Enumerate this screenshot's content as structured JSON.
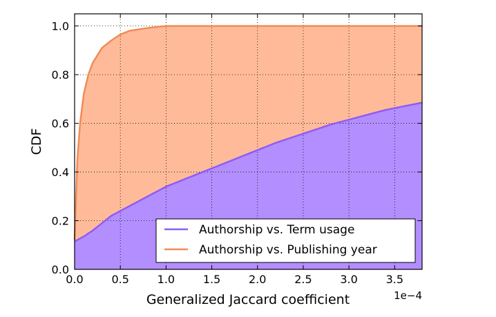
{
  "chart_data": {
    "type": "area",
    "xlabel": "Generalized Jaccard coefficient",
    "ylabel": "CDF",
    "x_offset_label": "1e−4",
    "xlim": [
      0.0,
      3.8
    ],
    "ylim": [
      0.0,
      1.05
    ],
    "x_ticks": [
      "0.0",
      "0.5",
      "1.0",
      "1.5",
      "2.0",
      "2.5",
      "3.0",
      "3.5"
    ],
    "y_ticks": [
      "0.0",
      "0.2",
      "0.4",
      "0.6",
      "0.8",
      "1.0"
    ],
    "grid": true,
    "legend_position": "lower-right",
    "series": [
      {
        "name": "Authorship vs. Term usage",
        "line_color": "#8e5cf5",
        "fill_color": "#b38eff",
        "x": [
          0.0,
          0.1,
          0.2,
          0.3,
          0.4,
          0.5,
          0.6,
          0.7,
          0.8,
          0.9,
          1.0,
          1.2,
          1.4,
          1.6,
          1.8,
          2.0,
          2.2,
          2.4,
          2.6,
          2.8,
          3.0,
          3.2,
          3.4,
          3.6,
          3.8
        ],
        "values": [
          0.115,
          0.135,
          0.16,
          0.19,
          0.22,
          0.24,
          0.26,
          0.28,
          0.3,
          0.32,
          0.34,
          0.37,
          0.4,
          0.43,
          0.46,
          0.49,
          0.52,
          0.545,
          0.57,
          0.595,
          0.615,
          0.635,
          0.655,
          0.67,
          0.685
        ]
      },
      {
        "name": "Authorship vs. Publishing year",
        "line_color": "#f08b55",
        "fill_color": "#ffbb99",
        "x": [
          0.0,
          0.03,
          0.06,
          0.1,
          0.15,
          0.2,
          0.25,
          0.3,
          0.4,
          0.5,
          0.6,
          0.8,
          1.0,
          1.5,
          2.0,
          3.0,
          3.8
        ],
        "values": [
          0.12,
          0.45,
          0.6,
          0.72,
          0.8,
          0.85,
          0.88,
          0.91,
          0.94,
          0.965,
          0.98,
          0.992,
          1.0,
          1.0,
          1.0,
          1.0,
          1.0
        ]
      }
    ]
  }
}
